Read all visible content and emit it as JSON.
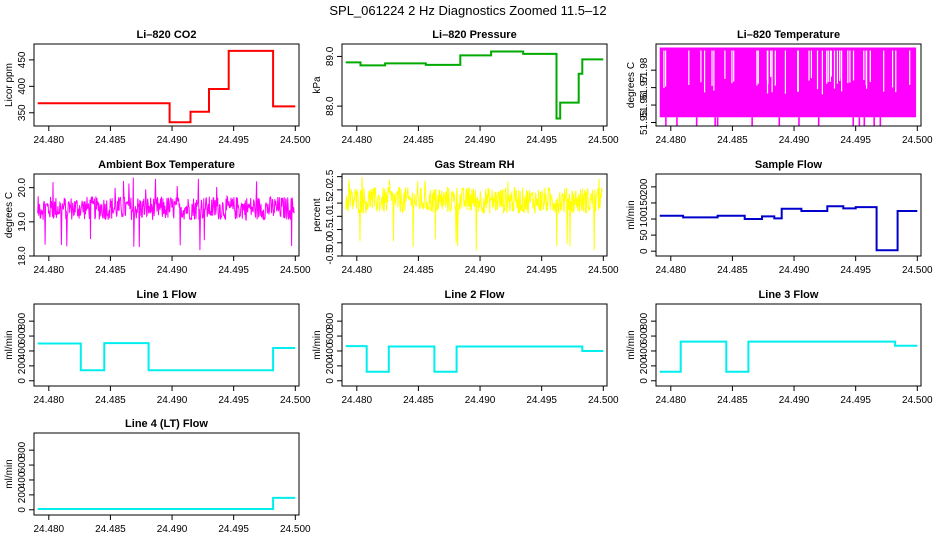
{
  "title": "SPL_061224  2 Hz Diagnostics Zoomed 11.5–12",
  "chart_data": [
    {
      "type": "line",
      "title": "Li–820 CO2",
      "ylabel": "Licor ppm",
      "color": "#ff0000",
      "xlim": [
        24.4788,
        24.5003
      ],
      "ylim": [
        325,
        480
      ],
      "xticks": [
        "24.480",
        "24.485",
        "24.490",
        "24.495",
        "24.500"
      ],
      "yticks": [
        "350",
        "400",
        "450"
      ],
      "x": [
        24.4791,
        24.4898,
        24.4898,
        24.4915,
        24.4915,
        24.493,
        24.493,
        24.4946,
        24.4946,
        24.4982,
        24.4982,
        24.5
      ],
      "y": [
        368,
        368,
        332,
        332,
        352,
        352,
        395,
        395,
        467,
        467,
        362,
        362
      ]
    },
    {
      "type": "line",
      "title": "Li–820 Pressure",
      "ylabel": "kPa",
      "color": "#00aa00",
      "xlim": [
        24.4788,
        24.5003
      ],
      "ylim": [
        87.6,
        89.25
      ],
      "xticks": [
        "24.480",
        "24.485",
        "24.490",
        "24.495",
        "24.500"
      ],
      "yticks": [
        "88.0",
        "89.0"
      ],
      "x": [
        24.4791,
        24.4803,
        24.4803,
        24.4823,
        24.4823,
        24.4856,
        24.4856,
        24.4884,
        24.4884,
        24.4909,
        24.4909,
        24.4935,
        24.4935,
        24.4962,
        24.4962,
        24.4965,
        24.4965,
        24.498,
        24.498,
        24.4983,
        24.4983,
        24.5
      ],
      "y": [
        88.88,
        88.88,
        88.82,
        88.82,
        88.86,
        88.86,
        88.83,
        88.83,
        89.02,
        89.02,
        89.1,
        89.1,
        89.05,
        89.05,
        87.75,
        87.75,
        88.07,
        88.07,
        88.65,
        88.65,
        88.94,
        88.94
      ]
    },
    {
      "type": "line",
      "title": "Li–820 Temperature",
      "ylabel": "degrees C",
      "color": "#ff00ff",
      "xlim": [
        24.4788,
        24.5003
      ],
      "ylim": [
        51.948,
        51.995
      ],
      "xticks": [
        "24.480",
        "24.485",
        "24.490",
        "24.495",
        "24.500"
      ],
      "yticks": [
        "51.95",
        "51.96",
        "51.97",
        "51.98"
      ],
      "x_range": [
        24.4791,
        24.4999
      ],
      "y_band": [
        51.953,
        51.993
      ],
      "dips": [
        24.4796,
        24.4805,
        24.4821,
        24.4836,
        24.4838,
        24.4866,
        24.4888,
        24.4904,
        24.492,
        24.4948,
        24.4953,
        24.4957,
        24.4965,
        24.497
      ],
      "dip_level": 51.948
    },
    {
      "type": "line",
      "title": "Ambient Box Temperature",
      "ylabel": "degrees C",
      "color": "#ff00ff",
      "xlim": [
        24.4788,
        24.5003
      ],
      "ylim": [
        18.0,
        20.4
      ],
      "xticks": [
        "24.480",
        "24.485",
        "24.490",
        "24.495",
        "24.500"
      ],
      "yticks": [
        "18.0",
        "19.0",
        "20.0"
      ],
      "x_range": [
        24.4791,
        24.4999
      ],
      "y_center": 19.4,
      "y_spread": 0.35,
      "y_extremes": [
        18.15,
        20.3
      ]
    },
    {
      "type": "line",
      "title": "Gas Stream RH",
      "ylabel": "percent",
      "color": "#ffff00",
      "xlim": [
        24.4788,
        24.5003
      ],
      "ylim": [
        -0.5,
        2.6
      ],
      "xticks": [
        "24.480",
        "24.485",
        "24.490",
        "24.495",
        "24.500"
      ],
      "yticks": [
        "-0.5",
        "0.0",
        "0.5",
        "1.0",
        "1.5",
        "2.0",
        "2.5"
      ],
      "x_range": [
        24.4791,
        24.4999
      ],
      "y_center": 1.6,
      "y_spread": 0.5,
      "y_extremes": [
        -0.3,
        2.5
      ]
    },
    {
      "type": "line",
      "title": "Sample Flow",
      "ylabel": "ml/min",
      "color": "#0000cc",
      "xlim": [
        24.4788,
        24.5003
      ],
      "ylim": [
        -15,
        240
      ],
      "xticks": [
        "24.480",
        "24.485",
        "24.490",
        "24.495",
        "24.500"
      ],
      "yticks": [
        "0",
        "50",
        "100",
        "150",
        "200"
      ],
      "x": [
        24.4791,
        24.481,
        24.481,
        24.4838,
        24.4838,
        24.486,
        24.486,
        24.4874,
        24.4874,
        24.4884,
        24.4884,
        24.489,
        24.489,
        24.4906,
        24.4906,
        24.4927,
        24.4927,
        24.494,
        24.494,
        24.495,
        24.495,
        24.4967,
        24.4967,
        24.4984,
        24.4984,
        24.5
      ],
      "y": [
        110,
        110,
        105,
        105,
        110,
        110,
        100,
        100,
        108,
        108,
        102,
        102,
        132,
        132,
        125,
        125,
        140,
        140,
        133,
        133,
        137,
        137,
        3,
        3,
        125,
        125
      ]
    },
    {
      "type": "line",
      "title": "Line 1 Flow",
      "ylabel": "ml/min",
      "color": "#00eeee",
      "xlim": [
        24.4788,
        24.5003
      ],
      "ylim": [
        -70,
        1030
      ],
      "xticks": [
        "24.480",
        "24.485",
        "24.490",
        "24.495",
        "24.500"
      ],
      "yticks": [
        "0",
        "200",
        "400",
        "600",
        "800"
      ],
      "x": [
        24.4791,
        24.4826,
        24.4826,
        24.4845,
        24.4845,
        24.4881,
        24.4881,
        24.4982,
        24.4982,
        24.5
      ],
      "y": [
        500,
        500,
        140,
        140,
        505,
        505,
        140,
        140,
        440,
        440
      ]
    },
    {
      "type": "line",
      "title": "Line 2 Flow",
      "ylabel": "ml/min",
      "color": "#00eeee",
      "xlim": [
        24.4788,
        24.5003
      ],
      "ylim": [
        -70,
        1030
      ],
      "xticks": [
        "24.480",
        "24.485",
        "24.490",
        "24.495",
        "24.500"
      ],
      "yticks": [
        "0",
        "200",
        "400",
        "600",
        "800"
      ],
      "x": [
        24.4791,
        24.4808,
        24.4808,
        24.4826,
        24.4826,
        24.4863,
        24.4863,
        24.4881,
        24.4881,
        24.4983,
        24.4983,
        24.5
      ],
      "y": [
        465,
        465,
        120,
        120,
        460,
        460,
        120,
        120,
        460,
        460,
        400,
        400
      ]
    },
    {
      "type": "line",
      "title": "Line 3 Flow",
      "ylabel": "ml/min",
      "color": "#00eeee",
      "xlim": [
        24.4788,
        24.5003
      ],
      "ylim": [
        -70,
        1030
      ],
      "xticks": [
        "24.480",
        "24.485",
        "24.490",
        "24.495",
        "24.500"
      ],
      "yticks": [
        "0",
        "200",
        "400",
        "600",
        "800"
      ],
      "x": [
        24.4791,
        24.4808,
        24.4808,
        24.4845,
        24.4845,
        24.4863,
        24.4863,
        24.4982,
        24.4982,
        24.5
      ],
      "y": [
        120,
        120,
        525,
        525,
        120,
        120,
        525,
        525,
        470,
        470
      ]
    },
    {
      "type": "line",
      "title": "Line 4 (LT) Flow",
      "ylabel": "ml/min",
      "color": "#00eeee",
      "xlim": [
        24.4788,
        24.5003
      ],
      "ylim": [
        -70,
        1030
      ],
      "xticks": [
        "24.480",
        "24.485",
        "24.490",
        "24.495",
        "24.500"
      ],
      "yticks": [
        "0",
        "200",
        "400",
        "600",
        "800"
      ],
      "x": [
        24.4791,
        24.4982,
        24.4982,
        24.5
      ],
      "y": [
        10,
        10,
        160,
        160
      ]
    }
  ]
}
